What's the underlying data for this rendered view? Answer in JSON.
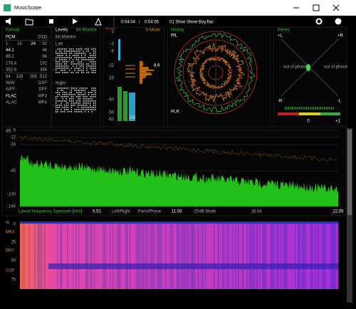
{
  "window": {
    "title": "MusicScope"
  },
  "toolbar": {
    "position": "0:04:04",
    "separator": "/",
    "duration": "0:04:55",
    "track": "01 Shoe Shine Boy.flac"
  },
  "format": {
    "title": "Format",
    "rows": [
      [
        "PCM",
        "DSD"
      ],
      [
        "1",
        "16",
        "24",
        "32"
      ],
      [
        "44.1",
        "48"
      ],
      [
        "88.2",
        "96"
      ],
      [
        "176.4",
        "192"
      ],
      [
        "352.8",
        "384"
      ],
      [
        "64",
        "128",
        "256",
        "512"
      ],
      [
        "WAV",
        "DSF"
      ],
      [
        "AIFF",
        "DFF"
      ],
      [
        "FLAC",
        "MP3"
      ],
      [
        "ALAC",
        "MP4"
      ]
    ]
  },
  "levels": {
    "title": "Levels",
    "mode": "Bit Monitor",
    "subtitle": "Bit Monitor",
    "left": "Left",
    "right": "Right"
  },
  "meters": {
    "scale": [
      "0",
      "-3",
      "-6",
      "-12",
      "-20",
      "-40",
      "-50",
      "-60"
    ],
    "mode": "S-Mode",
    "peak": "8.9",
    "unit": "LU"
  },
  "history": {
    "title": "History",
    "top": "PfL",
    "bottom": "PLR"
  },
  "stereo": {
    "title": "Stereo",
    "plus_l": "+L",
    "plus_r": "+R",
    "minus_r": "-R",
    "minus_l": "-L",
    "phase_left": "out of phase",
    "phase_right": "out of phase",
    "center": "0",
    "right": "+1"
  },
  "spectrum": {
    "unit": "dB",
    "ticks": [
      "0",
      "-12",
      "-24",
      "-40",
      "-100",
      "-144"
    ],
    "axis_title": "Linear Frequency Spectrum [kHz]",
    "labels": [
      "5.51",
      "Left/Right",
      "Pans/Phase",
      "11.03",
      "-20dB Mode",
      "16.54",
      "22.05"
    ]
  },
  "spectrogram": {
    "unit": "%",
    "ticks": [
      "0",
      "25",
      "50",
      "75"
    ],
    "markers": [
      "MAX",
      "BRY",
      "COF"
    ]
  }
}
